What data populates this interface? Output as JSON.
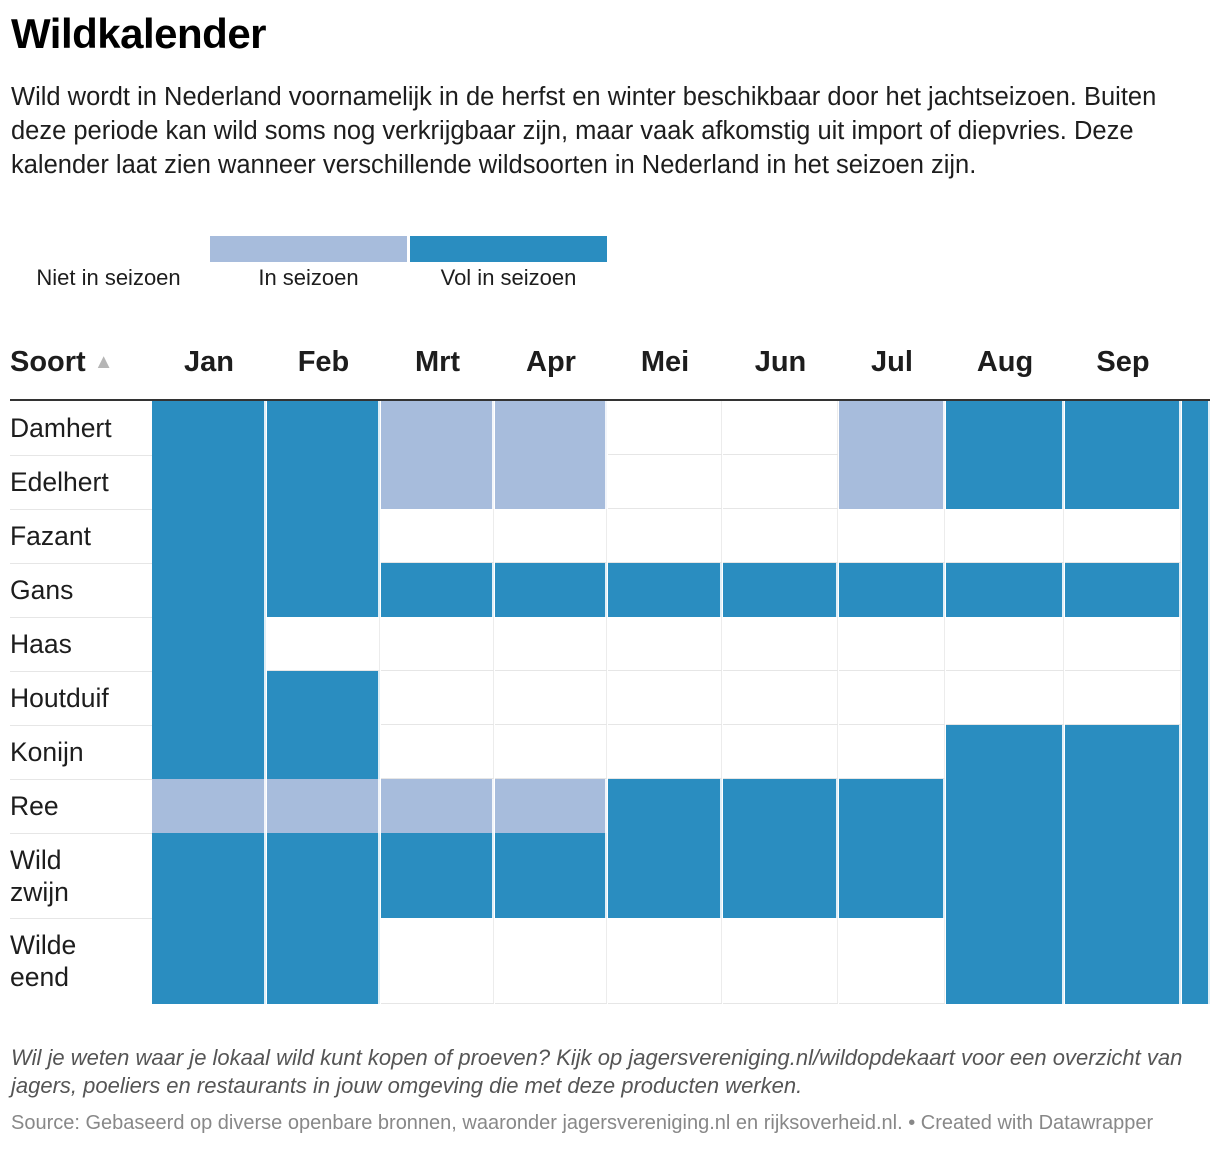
{
  "title": "Wildkalender",
  "subtitle": "Wild wordt in Nederland voornamelijk in de herfst en winter beschikbaar door het jachtseizoen. Buiten deze periode kan wild soms nog verkrijgbaar zijn, maar vaak afkomstig uit import of diepvries. Deze kalender laat zien wanneer verschillende wildsoorten in Nederland in het seizoen zijn.",
  "note": "Wil je weten waar je lokaal wild kunt kopen of proeven? Kijk op jagersvereniging.nl/wildopdekaart voor een overzicht van jagers, poeliers en restaurants in jouw omgeving die met deze producten werken.",
  "source": "Source: Gebaseerd op diverse openbare bronnen, waaronder jagersvereniging.nl en rijksoverheid.nl.  • Created with Datawrapper",
  "colors": {
    "none": "#ffffff",
    "in": "#a7bcdc",
    "full": "#2a8dc0"
  },
  "icons": {
    "sort": "sort-ascending-triangle-icon"
  },
  "chart_data": {
    "type": "table",
    "legend": [
      {
        "key": "none",
        "label": "Niet in seizoen"
      },
      {
        "key": "in",
        "label": "In seizoen"
      },
      {
        "key": "full",
        "label": "Vol in seizoen"
      }
    ],
    "row_header": "Soort",
    "sort_indicator": "▲",
    "months": [
      "Jan",
      "Feb",
      "Mrt",
      "Apr",
      "Mei",
      "Jun",
      "Jul",
      "Aug",
      "Sep",
      ""
    ],
    "rows": [
      {
        "name": "Damhert",
        "values": [
          2,
          2,
          1,
          1,
          0,
          0,
          1,
          2,
          2,
          2
        ]
      },
      {
        "name": "Edelhert",
        "values": [
          2,
          2,
          1,
          1,
          0,
          0,
          1,
          2,
          2,
          2
        ]
      },
      {
        "name": "Fazant",
        "values": [
          2,
          2,
          0,
          0,
          0,
          0,
          0,
          0,
          0,
          2
        ]
      },
      {
        "name": "Gans",
        "values": [
          2,
          2,
          2,
          2,
          2,
          2,
          2,
          2,
          2,
          2
        ]
      },
      {
        "name": "Haas",
        "values": [
          2,
          0,
          0,
          0,
          0,
          0,
          0,
          0,
          0,
          2
        ]
      },
      {
        "name": "Houtduif",
        "values": [
          2,
          2,
          0,
          0,
          0,
          0,
          0,
          0,
          0,
          2
        ]
      },
      {
        "name": "Konijn",
        "values": [
          2,
          2,
          0,
          0,
          0,
          0,
          0,
          2,
          2,
          2
        ]
      },
      {
        "name": "Ree",
        "values": [
          1,
          1,
          1,
          1,
          2,
          2,
          2,
          2,
          2,
          2
        ]
      },
      {
        "name": "Wild\nzwijn",
        "values": [
          2,
          2,
          2,
          2,
          2,
          2,
          2,
          2,
          2,
          2
        ]
      },
      {
        "name": "Wilde\neend",
        "values": [
          2,
          2,
          0,
          0,
          0,
          0,
          0,
          2,
          2,
          2
        ]
      }
    ]
  }
}
